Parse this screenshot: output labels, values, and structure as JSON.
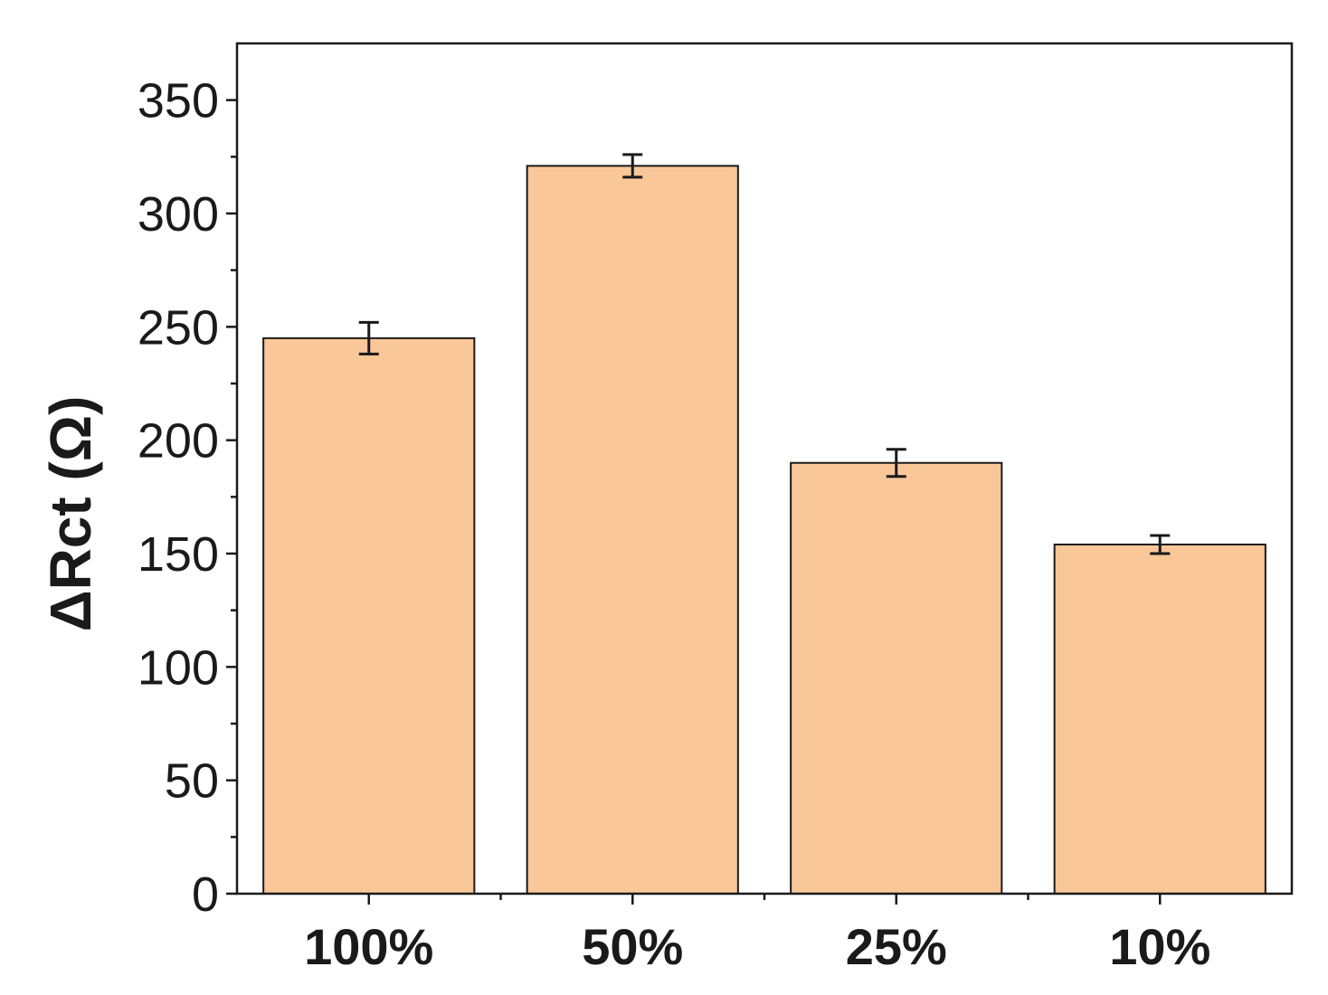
{
  "chart_data": {
    "type": "bar",
    "categories": [
      "100%",
      "50%",
      "25%",
      "10%"
    ],
    "values": [
      245,
      321,
      190,
      154
    ],
    "errors": [
      7,
      5,
      6,
      4
    ],
    "ylabel": "ΔRct (Ω)",
    "xlabel": "",
    "ylim": [
      0,
      375
    ],
    "yticks": [
      0,
      50,
      100,
      150,
      200,
      250,
      300,
      350
    ],
    "grid": false,
    "legend": "none",
    "bar_color": "#fac799",
    "bar_edge_color": "#1a1a1a"
  }
}
